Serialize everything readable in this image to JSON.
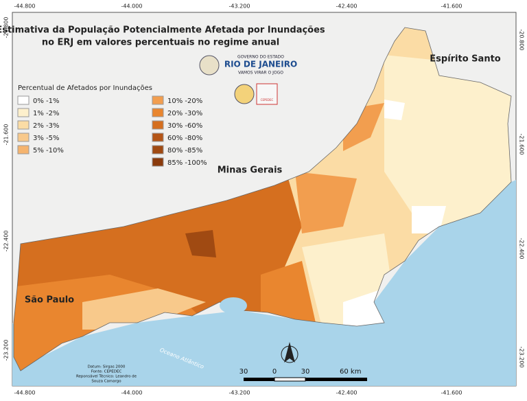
{
  "title": [
    "Estimativa da População Potencialmente Afetada por Inundações",
    "no ERJ em valores percentuais no regime anual"
  ],
  "logo": {
    "line1": "GOVERNO DO ESTADO",
    "line2": "RIO DE JANEIRO",
    "line3": "VAMOS VIRAR O JOGO",
    "badge": "CEPEDEC"
  },
  "regions": {
    "es": "Espírito Santo",
    "mg": "Minas Gerais",
    "sp": "São Paulo",
    "ocean": "Oceano Atlântico"
  },
  "legend": {
    "title": "Percentual de Afetados por Inundações",
    "items": [
      {
        "label": "0% -1%",
        "color": "#ffffff"
      },
      {
        "label": "1% -2%",
        "color": "#fdf0cc"
      },
      {
        "label": "2% -3%",
        "color": "#fbdca5"
      },
      {
        "label": "3% -5%",
        "color": "#f8c98b"
      },
      {
        "label": "5% -10%",
        "color": "#f5b46e"
      },
      {
        "label": "10% -20%",
        "color": "#f29e4f"
      },
      {
        "label": "20% -30%",
        "color": "#e9862f"
      },
      {
        "label": "30% -60%",
        "color": "#d56f1f"
      },
      {
        "label": "60% -80%",
        "color": "#b45517"
      },
      {
        "label": "80% -85%",
        "color": "#a04a12"
      },
      {
        "label": "85% -100%",
        "color": "#8a3a0c"
      }
    ]
  },
  "coords": {
    "top": [
      "-44.800",
      "-44.000",
      "-43.200",
      "-42.400",
      "-41.600"
    ],
    "bottom": [
      "-44.800",
      "-44.000",
      "-43.200",
      "-42.400",
      "-41.600"
    ],
    "left": [
      "-20.800",
      "-21.600",
      "-22.400",
      "-23.200"
    ],
    "right": [
      "-20.800",
      "-21.600",
      "-22.400",
      "-23.200"
    ]
  },
  "credits": [
    "Datum: Sirgas 2000",
    "Fonte: CEPEDEC",
    "Reponsável Técnico: Leandro de",
    "Souza Camargo"
  ],
  "scale": [
    "30",
    "0",
    "30",
    "60 km"
  ]
}
